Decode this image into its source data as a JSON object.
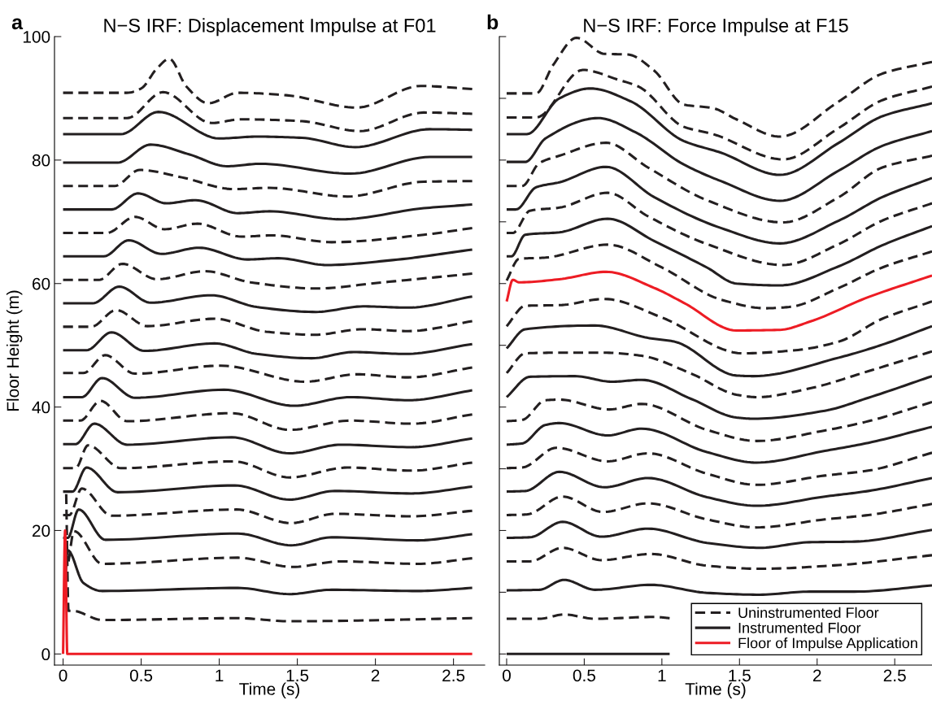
{
  "chart_data": [
    {
      "type": "line",
      "title": "N−S IRF: Displacement Impulse at F01",
      "xlabel": "Time (s)",
      "ylabel": "Floor Height (m)",
      "annotations": [
        "a"
      ],
      "xlim": [
        -0.055,
        2.7
      ],
      "ylim": [
        -1.8,
        100
      ],
      "xticks": [
        0,
        0.5,
        1,
        1.5,
        2,
        2.5
      ],
      "yticks": [
        0,
        20,
        40,
        60,
        80,
        100
      ],
      "legend": false,
      "series": [
        {
          "color": "#231f20",
          "line_style": "dashed",
          "x": [
            0,
            0.41,
            0.5,
            0.6,
            0.68,
            0.79,
            0.93,
            1.12,
            1.43,
            1.88,
            2.29,
            2.62
          ],
          "values": [
            90.9,
            90.9,
            91.6,
            94.8,
            96.4,
            91.9,
            89.2,
            90.9,
            90.5,
            88.5,
            92.0,
            91.5
          ]
        },
        {
          "color": "#231f20",
          "line_style": "dashed",
          "x": [
            0,
            0.41,
            0.64,
            0.95,
            1.14,
            1.53,
            1.9,
            2.31,
            2.62
          ],
          "values": [
            86.8,
            86.8,
            91.0,
            86.0,
            86.6,
            86.3,
            84.7,
            87.7,
            87.5
          ]
        },
        {
          "color": "#231f20",
          "line_style": "solid",
          "x": [
            0,
            0.37,
            0.61,
            1.0,
            1.24,
            1.53,
            1.87,
            2.35,
            2.62
          ],
          "values": [
            84.2,
            84.2,
            87.8,
            83.5,
            83.8,
            83.6,
            82.1,
            85.0,
            84.9
          ]
        },
        {
          "color": "#231f20",
          "line_style": "solid",
          "x": [
            0,
            0.35,
            0.56,
            0.81,
            1.05,
            1.26,
            1.84,
            2.35,
            2.62
          ],
          "values": [
            79.6,
            79.6,
            82.5,
            80.9,
            79.0,
            79.4,
            77.8,
            80.5,
            80.5
          ]
        },
        {
          "color": "#231f20",
          "line_style": "dashed",
          "x": [
            0,
            0.33,
            0.49,
            0.76,
            1.09,
            1.32,
            1.82,
            2.31,
            2.62
          ],
          "values": [
            75.8,
            75.8,
            78.4,
            77.2,
            75.3,
            75.5,
            74.1,
            76.5,
            76.6
          ]
        },
        {
          "color": "#231f20",
          "line_style": "solid",
          "x": [
            0,
            0.31,
            0.48,
            0.66,
            0.85,
            1.12,
            1.32,
            1.78,
            2.31,
            2.62
          ],
          "values": [
            72.0,
            72.0,
            74.6,
            73.0,
            73.5,
            71.4,
            71.7,
            70.4,
            72.2,
            72.8
          ]
        },
        {
          "color": "#231f20",
          "line_style": "dashed",
          "x": [
            0,
            0.28,
            0.46,
            0.65,
            0.86,
            1.14,
            1.34,
            1.72,
            2.31,
            2.62
          ],
          "values": [
            68.2,
            68.2,
            70.8,
            68.8,
            69.7,
            67.6,
            67.8,
            66.7,
            67.9,
            69.0
          ]
        },
        {
          "color": "#231f20",
          "line_style": "solid",
          "x": [
            0,
            0.26,
            0.42,
            0.63,
            0.87,
            1.18,
            1.38,
            1.69,
            2.11,
            2.62
          ],
          "values": [
            64.4,
            64.4,
            67.0,
            64.8,
            65.8,
            63.9,
            64.1,
            63.0,
            63.8,
            65.5
          ]
        },
        {
          "color": "#231f20",
          "line_style": "dashed",
          "x": [
            0,
            0.23,
            0.38,
            0.6,
            0.91,
            1.2,
            1.63,
            2.01,
            2.62
          ],
          "values": [
            60.6,
            60.6,
            63.2,
            60.7,
            62.0,
            60.2,
            59.2,
            60.1,
            61.6
          ]
        },
        {
          "color": "#231f20",
          "line_style": "solid",
          "x": [
            0,
            0.19,
            0.36,
            0.56,
            0.95,
            1.24,
            1.62,
            1.92,
            2.21,
            2.62
          ],
          "values": [
            56.8,
            56.8,
            59.5,
            56.9,
            58.1,
            56.2,
            55.4,
            56.3,
            56.1,
            57.9
          ]
        },
        {
          "color": "#231f20",
          "line_style": "dashed",
          "x": [
            0,
            0.18,
            0.34,
            0.54,
            0.97,
            1.3,
            1.61,
            1.92,
            2.21,
            2.62
          ],
          "values": [
            53.0,
            53.0,
            55.7,
            53.1,
            54.3,
            52.2,
            51.7,
            52.6,
            52.3,
            53.9
          ]
        },
        {
          "color": "#231f20",
          "line_style": "solid",
          "x": [
            0,
            0.15,
            0.31,
            0.52,
            0.97,
            1.24,
            1.59,
            1.86,
            2.19,
            2.62
          ],
          "values": [
            49.2,
            49.2,
            52.1,
            49.1,
            50.3,
            48.6,
            47.9,
            48.9,
            48.6,
            50.2
          ]
        },
        {
          "color": "#231f20",
          "line_style": "dashed",
          "x": [
            0,
            0.13,
            0.27,
            0.46,
            1.01,
            1.55,
            1.88,
            2.21,
            2.62
          ],
          "values": [
            45.5,
            45.5,
            48.4,
            45.4,
            46.7,
            44.1,
            45.3,
            44.8,
            46.4
          ]
        },
        {
          "color": "#231f20",
          "line_style": "solid",
          "x": [
            0,
            0.12,
            0.25,
            0.46,
            1.03,
            1.48,
            1.84,
            2.21,
            2.62
          ],
          "values": [
            41.6,
            41.6,
            44.7,
            41.5,
            42.8,
            40.2,
            41.6,
            41.1,
            42.7
          ]
        },
        {
          "color": "#231f20",
          "line_style": "dashed",
          "x": [
            0,
            0.11,
            0.24,
            0.41,
            1.08,
            1.45,
            1.84,
            2.23,
            2.62
          ],
          "values": [
            37.8,
            37.8,
            41.0,
            37.7,
            39.0,
            36.3,
            37.8,
            37.3,
            38.8
          ]
        },
        {
          "color": "#231f20",
          "line_style": "solid",
          "x": [
            0,
            0.08,
            0.2,
            0.41,
            1.08,
            1.45,
            1.78,
            2.23,
            2.62
          ],
          "values": [
            34.0,
            34.0,
            37.3,
            33.9,
            35.1,
            32.5,
            33.9,
            33.5,
            34.9
          ]
        },
        {
          "color": "#231f20",
          "line_style": "dashed",
          "x": [
            0,
            0.08,
            0.16,
            0.37,
            1.09,
            1.45,
            1.82,
            2.23,
            2.62
          ],
          "values": [
            30.1,
            30.1,
            33.8,
            30.1,
            31.2,
            28.6,
            30.2,
            29.7,
            31.0
          ]
        },
        {
          "color": "#231f20",
          "line_style": "solid",
          "x": [
            0,
            0.06,
            0.15,
            0.35,
            1.1,
            1.45,
            1.74,
            2.23,
            2.62
          ],
          "values": [
            26.3,
            26.3,
            30.2,
            26.2,
            27.3,
            25.0,
            26.4,
            26.0,
            27.1
          ]
        },
        {
          "color": "#231f20",
          "line_style": "dashed",
          "x": [
            0,
            0.04,
            0.12,
            0.31,
            1.11,
            1.46,
            1.74,
            2.23,
            2.62
          ],
          "values": [
            22.5,
            22.5,
            26.8,
            22.4,
            23.4,
            21.2,
            22.7,
            22.3,
            23.2
          ]
        },
        {
          "color": "#231f20",
          "line_style": "solid",
          "x": [
            0,
            0.03,
            0.1,
            0.27,
            1.12,
            1.46,
            1.72,
            2.27,
            2.62
          ],
          "values": [
            18.8,
            18.8,
            23.4,
            18.5,
            19.5,
            17.6,
            18.9,
            18.4,
            19.4
          ]
        },
        {
          "color": "#231f20",
          "line_style": "dashed",
          "x": [
            0.035,
            0.07,
            0.25,
            1.12,
            1.47,
            1.78,
            2.27,
            2.62
          ],
          "values": [
            15.0,
            19.9,
            14.6,
            15.6,
            14.1,
            15.0,
            14.6,
            15.5
          ]
        },
        {
          "color": "#231f20",
          "line_style": "solid",
          "x": [
            0.01,
            0.03,
            0.13,
            0.25,
            1.12,
            1.45,
            1.72,
            2.27,
            2.62
          ],
          "values": [
            10.4,
            16.8,
            11.5,
            10.2,
            10.7,
            9.7,
            10.4,
            10.2,
            10.7
          ]
        },
        {
          "color": "#231f20",
          "line_style": "dashed",
          "x": [
            0.02,
            0.035,
            0.06,
            0.25,
            1.12,
            1.45,
            2.62
          ],
          "values": [
            25.9,
            7.0,
            7.0,
            5.5,
            5.8,
            5.3,
            5.8
          ]
        },
        {
          "color": "#ed1c24",
          "line_style": "solid",
          "x": [
            0,
            0.013,
            0.027,
            2.62
          ],
          "values": [
            0,
            20.0,
            0,
            0
          ]
        }
      ]
    },
    {
      "type": "line",
      "title": "N−S IRF: Force Impulse at F15",
      "xlabel": "Time (s)",
      "annotations": [
        "b"
      ],
      "xlim": [
        -0.047,
        2.74
      ],
      "ylim": [
        -1.8,
        100
      ],
      "xticks": [
        0,
        0.5,
        1,
        1.5,
        2,
        2.5
      ],
      "yticks": [
        0,
        10,
        20,
        30,
        40,
        50,
        60,
        70,
        80,
        90,
        100
      ],
      "tick_labels": "x",
      "legend": "bottom right",
      "series": [
        {
          "name": "Uninstrumented Floor",
          "color": "#231f20",
          "line_style": "dashed",
          "x": [
            0,
            0.19,
            0.3,
            0.45,
            0.63,
            0.78,
            0.95,
            1.14,
            1.33,
            1.48,
            1.76,
            2.14,
            2.42,
            2.74
          ],
          "values": [
            90.8,
            90.8,
            95.4,
            99.8,
            97.2,
            97.1,
            94.5,
            89.0,
            88.4,
            86.6,
            83.8,
            89.5,
            94.0,
            95.9
          ]
        },
        {
          "color": "#231f20",
          "line_style": "dashed",
          "x": [
            0,
            0.19,
            0.49,
            0.72,
            0.85,
            1.14,
            1.33,
            1.78,
            2.14,
            2.42,
            2.74
          ],
          "values": [
            86.9,
            86.9,
            94.6,
            93.0,
            91.9,
            85.4,
            84.2,
            80.1,
            85.2,
            89.7,
            91.9
          ]
        },
        {
          "name": "Instrumented Floor",
          "color": "#231f20",
          "line_style": "solid",
          "x": [
            0,
            0.13,
            0.34,
            0.54,
            0.8,
            1.14,
            1.38,
            1.76,
            2.14,
            2.42,
            2.74
          ],
          "values": [
            84.2,
            84.2,
            90.0,
            91.6,
            89.5,
            83.1,
            81.2,
            77.6,
            82.8,
            87.1,
            89.2
          ]
        },
        {
          "color": "#231f20",
          "line_style": "solid",
          "x": [
            0,
            0.12,
            0.25,
            0.59,
            0.83,
            1.14,
            1.38,
            1.76,
            2.14,
            2.42,
            2.74
          ],
          "values": [
            79.7,
            79.7,
            83.5,
            86.8,
            84.5,
            79.3,
            76.6,
            73.4,
            78.3,
            82.3,
            84.7
          ]
        },
        {
          "color": "#231f20",
          "line_style": "dashed",
          "x": [
            0,
            0.1,
            0.21,
            0.34,
            0.64,
            0.91,
            1.29,
            1.78,
            2.14,
            2.42,
            2.74
          ],
          "values": [
            75.8,
            75.8,
            79.5,
            80.7,
            82.8,
            78.8,
            73.5,
            69.9,
            74.0,
            78.8,
            80.7
          ]
        },
        {
          "color": "#231f20",
          "line_style": "solid",
          "x": [
            0,
            0.06,
            0.19,
            0.34,
            0.64,
            0.95,
            1.38,
            1.76,
            2.14,
            2.42,
            2.74
          ],
          "values": [
            72.0,
            72.0,
            75.6,
            76.4,
            78.9,
            74.0,
            69.0,
            66.5,
            70.2,
            74.0,
            77.1
          ]
        },
        {
          "color": "#231f20",
          "line_style": "dashed",
          "x": [
            0,
            0.04,
            0.15,
            0.34,
            0.65,
            0.91,
            1.29,
            1.78,
            2.14,
            2.42,
            2.74
          ],
          "values": [
            68.2,
            68.2,
            71.8,
            72.3,
            74.7,
            70.9,
            66.4,
            63.0,
            66.4,
            70.2,
            73.0
          ]
        },
        {
          "color": "#231f20",
          "line_style": "solid",
          "x": [
            0,
            0.03,
            0.12,
            0.34,
            0.65,
            0.95,
            1.29,
            1.48,
            1.76,
            2.14,
            2.42,
            2.74
          ],
          "values": [
            64.4,
            64.4,
            67.9,
            68.3,
            70.5,
            66.9,
            62.6,
            60.0,
            59.7,
            62.8,
            66.2,
            69.3
          ]
        },
        {
          "color": "#231f20",
          "line_style": "dashed",
          "x": [
            0,
            0.08,
            0.25,
            0.65,
            1.0,
            1.38,
            1.67,
            1.82,
            2.14,
            2.42,
            2.74
          ],
          "values": [
            60.5,
            64.0,
            64.2,
            66.3,
            62.6,
            57.4,
            56.0,
            56.2,
            59.3,
            62.6,
            65.2
          ]
        },
        {
          "name": "Floor of Impulse Application",
          "color": "#ed1c24",
          "line_style": "solid",
          "x": [
            0,
            0.04,
            0.08,
            0.34,
            0.64,
            0.95,
            1.14,
            1.48,
            1.76,
            1.95,
            2.33,
            2.74
          ],
          "values": [
            57.1,
            60.6,
            60.2,
            60.7,
            61.9,
            59.3,
            56.9,
            52.4,
            52.5,
            53.8,
            57.8,
            61.3
          ]
        },
        {
          "color": "#231f20",
          "line_style": "dashed",
          "x": [
            0,
            0.12,
            0.34,
            0.63,
            1.0,
            1.52,
            1.86,
            2.14,
            2.42,
            2.74
          ],
          "values": [
            53.1,
            56.4,
            56.5,
            57.5,
            54.5,
            48.7,
            49.2,
            50.6,
            54.3,
            57.1
          ]
        },
        {
          "color": "#231f20",
          "line_style": "solid",
          "x": [
            0,
            0.12,
            0.57,
            0.91,
            1.08,
            1.48,
            1.59,
            2.14,
            2.42,
            2.74
          ],
          "values": [
            49.5,
            52.6,
            53.2,
            51.2,
            50.6,
            45.1,
            45.0,
            48.0,
            50.1,
            53.1
          ]
        },
        {
          "color": "#231f20",
          "line_style": "dashed",
          "x": [
            0,
            0.12,
            0.34,
            0.63,
            0.87,
            1.19,
            1.48,
            1.61,
            1.95,
            2.33,
            2.74
          ],
          "values": [
            45.5,
            48.7,
            48.8,
            48.8,
            48.3,
            45.4,
            42.0,
            41.6,
            43.0,
            45.8,
            49.0
          ]
        },
        {
          "color": "#231f20",
          "line_style": "solid",
          "x": [
            0,
            0.15,
            0.44,
            0.68,
            0.87,
            1.19,
            1.48,
            1.59,
            2.05,
            2.33,
            2.74
          ],
          "values": [
            41.6,
            44.9,
            45.0,
            44.1,
            44.4,
            41.3,
            38.3,
            38.1,
            39.4,
            41.5,
            45.0
          ]
        },
        {
          "color": "#231f20",
          "line_style": "dashed",
          "x": [
            0,
            0.1,
            0.25,
            0.34,
            0.66,
            0.87,
            1.29,
            1.61,
            2.05,
            2.33,
            2.74
          ],
          "values": [
            37.7,
            37.9,
            41.1,
            41.2,
            39.6,
            40.5,
            36.3,
            34.5,
            36.2,
            37.7,
            40.8
          ]
        },
        {
          "color": "#231f20",
          "line_style": "solid",
          "x": [
            0,
            0.1,
            0.25,
            0.34,
            0.65,
            0.87,
            1.29,
            1.61,
            2.05,
            2.33,
            2.74
          ],
          "values": [
            33.9,
            34.1,
            37.1,
            37.4,
            35.4,
            36.5,
            32.7,
            31.0,
            32.9,
            34.2,
            36.8
          ]
        },
        {
          "color": "#231f20",
          "line_style": "dashed",
          "x": [
            0,
            0.1,
            0.32,
            0.65,
            0.91,
            1.29,
            1.61,
            2.05,
            2.33,
            2.74
          ],
          "values": [
            30.1,
            30.2,
            33.4,
            31.2,
            32.5,
            29.2,
            27.4,
            28.9,
            29.7,
            32.6
          ]
        },
        {
          "color": "#231f20",
          "line_style": "solid",
          "x": [
            0,
            0.12,
            0.34,
            0.63,
            0.91,
            1.29,
            1.61,
            2.05,
            2.33,
            2.74
          ],
          "values": [
            26.3,
            26.4,
            29.5,
            27.0,
            28.5,
            25.4,
            24.0,
            25.5,
            26.4,
            28.5
          ]
        },
        {
          "color": "#231f20",
          "line_style": "dashed",
          "x": [
            0,
            0.13,
            0.36,
            0.62,
            0.91,
            1.29,
            1.61,
            2.05,
            2.33,
            2.74
          ],
          "values": [
            22.5,
            22.6,
            25.5,
            23.0,
            24.4,
            21.8,
            20.5,
            21.8,
            22.5,
            24.3
          ]
        },
        {
          "color": "#231f20",
          "line_style": "solid",
          "x": [
            0,
            0.15,
            0.36,
            0.61,
            0.91,
            1.29,
            1.63,
            1.95,
            2.24,
            2.74
          ],
          "values": [
            18.8,
            18.9,
            21.4,
            19.0,
            20.3,
            18.0,
            17.2,
            18.1,
            18.2,
            20.1
          ]
        },
        {
          "color": "#231f20",
          "line_style": "dashed",
          "x": [
            0,
            0.15,
            0.36,
            0.61,
            0.93,
            1.29,
            1.63,
            2.14,
            2.74
          ],
          "values": [
            15.0,
            15.0,
            17.2,
            15.2,
            16.2,
            14.3,
            13.8,
            14.4,
            16.0
          ]
        },
        {
          "color": "#231f20",
          "line_style": "solid",
          "x": [
            0,
            0.21,
            0.37,
            0.57,
            0.93,
            1.29,
            1.63,
            1.95,
            2.24,
            2.74
          ],
          "values": [
            10.3,
            10.4,
            12.0,
            10.4,
            11.2,
            9.9,
            9.6,
            10.1,
            10.1,
            11.1
          ]
        },
        {
          "color": "#231f20",
          "line_style": "dashed",
          "x": [
            0,
            0.21,
            0.37,
            0.57,
            0.95,
            1.05
          ],
          "values": [
            5.7,
            5.7,
            6.4,
            5.7,
            6.0,
            5.8
          ]
        },
        {
          "color": "#231f20",
          "line_style": "solid",
          "x": [
            0,
            1.05
          ],
          "values": [
            0,
            0
          ]
        }
      ]
    }
  ]
}
